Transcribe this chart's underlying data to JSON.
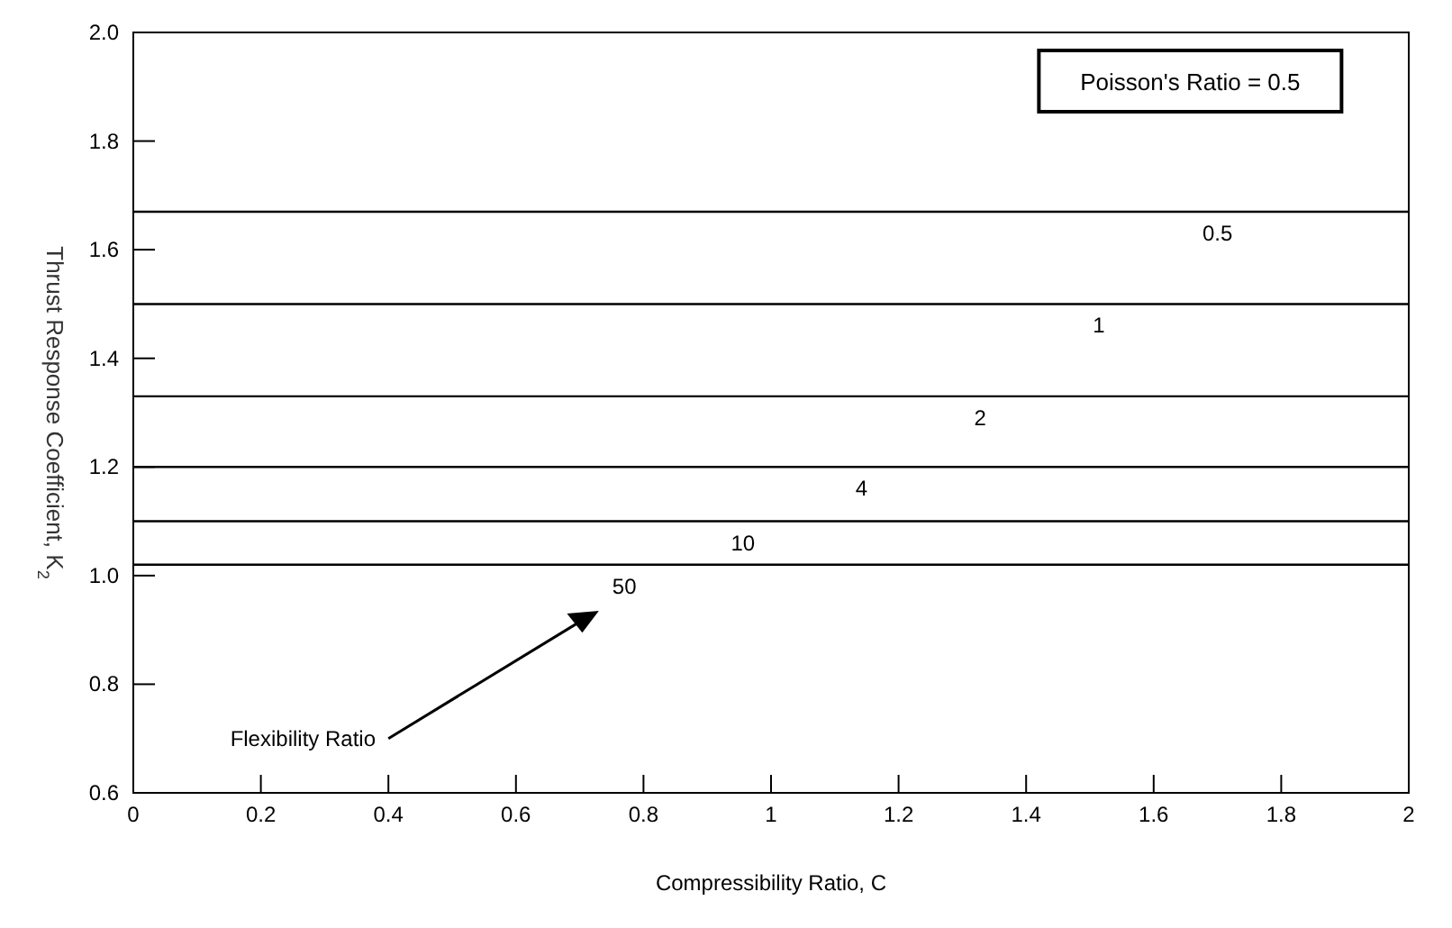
{
  "chart_data": {
    "type": "line",
    "xlabel": "Compressibility Ratio, C",
    "ylabel": "Thrust Response Coefficient, K$_{2}$",
    "xlim": [
      0,
      2
    ],
    "xticks": [
      0,
      0.2,
      0.4,
      0.6,
      0.8,
      1,
      1.2,
      1.4,
      1.6,
      1.8,
      2
    ],
    "ylim": [
      0.6,
      2.0
    ],
    "yticks": [
      {
        "value": 0.6,
        "label": "0.6"
      },
      {
        "value": 0.8,
        "label": "0.8"
      },
      {
        "value": 1.0,
        "label": "1.0"
      },
      {
        "value": 1.2,
        "label": "1.2"
      },
      {
        "value": 1.4,
        "label": "1.4"
      },
      {
        "value": 1.6,
        "label": "1.6"
      },
      {
        "value": 1.8,
        "label": "1.8"
      },
      {
        "value": 2.0,
        "label": "2.0"
      }
    ],
    "x": [
      0,
      2
    ],
    "grid": false,
    "marker": "none",
    "line_style": "solid",
    "series": [
      {
        "name": "0.5",
        "color": "#000000",
        "values": [
          1.67,
          1.67
        ]
      },
      {
        "name": "1",
        "color": "#000000",
        "values": [
          1.5,
          1.5
        ]
      },
      {
        "name": "2",
        "color": "#000000",
        "values": [
          1.33,
          1.33
        ]
      },
      {
        "name": "4",
        "color": "#000000",
        "values": [
          1.2,
          1.2
        ]
      },
      {
        "name": "10",
        "color": "#000000",
        "values": [
          1.1,
          1.1
        ]
      },
      {
        "name": "50",
        "color": "#000000",
        "values": [
          1.02,
          1.02
        ]
      }
    ],
    "annotations": [
      "Poisson's Ratio = 0.5",
      "Flexibility Ratio"
    ]
  }
}
